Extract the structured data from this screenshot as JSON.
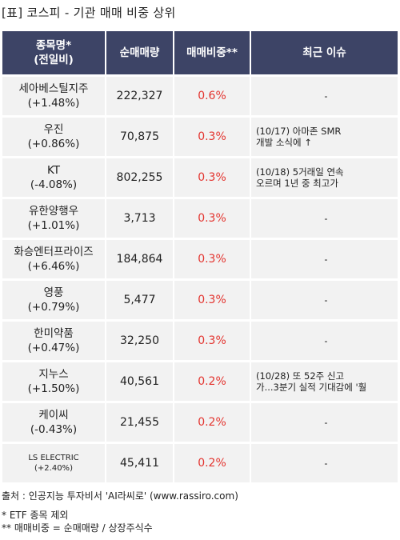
{
  "title": "[표] 코스피 - 기관 매매 비중 상위",
  "headers": {
    "name_line1": "종목명*",
    "name_line2": "(전일비)",
    "volume": "순매매량",
    "ratio": "매매비중**",
    "issue": "최근 이슈"
  },
  "rows": [
    {
      "name": "세아베스틸지주",
      "change": "(+1.48%)",
      "volume": "222,327",
      "ratio": "0.6%",
      "issue1": "-",
      "issue2": ""
    },
    {
      "name": "우진",
      "change": "(+0.86%)",
      "volume": "70,875",
      "ratio": "0.3%",
      "issue1": "(10/17) 아마존 SMR",
      "issue2": "개발 소식에 ↑"
    },
    {
      "name": "KT",
      "change": "(-4.08%)",
      "volume": "802,255",
      "ratio": "0.3%",
      "issue1": "(10/18) 5거래일 연속",
      "issue2": "오르며 1년 중 최고가"
    },
    {
      "name": "유한양행우",
      "change": "(+1.01%)",
      "volume": "3,713",
      "ratio": "0.3%",
      "issue1": "-",
      "issue2": ""
    },
    {
      "name": "화승엔터프라이즈",
      "change": "(+6.46%)",
      "volume": "184,864",
      "ratio": "0.3%",
      "issue1": "-",
      "issue2": ""
    },
    {
      "name": "영풍",
      "change": "(+0.79%)",
      "volume": "5,477",
      "ratio": "0.3%",
      "issue1": "-",
      "issue2": ""
    },
    {
      "name": "한미약품",
      "change": "(+0.47%)",
      "volume": "32,250",
      "ratio": "0.3%",
      "issue1": "-",
      "issue2": ""
    },
    {
      "name": "지누스",
      "change": "(+1.50%)",
      "volume": "40,561",
      "ratio": "0.2%",
      "issue1": "(10/28) 또 52주 신고",
      "issue2": "가...3분기 실적 기대감에 '훨"
    },
    {
      "name": "케이씨",
      "change": "(-0.43%)",
      "volume": "21,455",
      "ratio": "0.2%",
      "issue1": "-",
      "issue2": ""
    },
    {
      "name": "LS ELECTRIC",
      "change": "(+2.40%)",
      "volume": "45,411",
      "ratio": "0.2%",
      "issue1": "-",
      "issue2": ""
    }
  ],
  "footer": {
    "source": "출처 : 인공지능 투자비서 'AI라씨로' (www.rassiro.com)",
    "note1": "* ETF 종목 제외",
    "note2": "** 매매비중 = 순매매량 / 상장주식수"
  },
  "colors": {
    "header_bg": "#3d4466",
    "cell_bg": "#f2f2f2",
    "ratio_text": "#e3342f"
  }
}
